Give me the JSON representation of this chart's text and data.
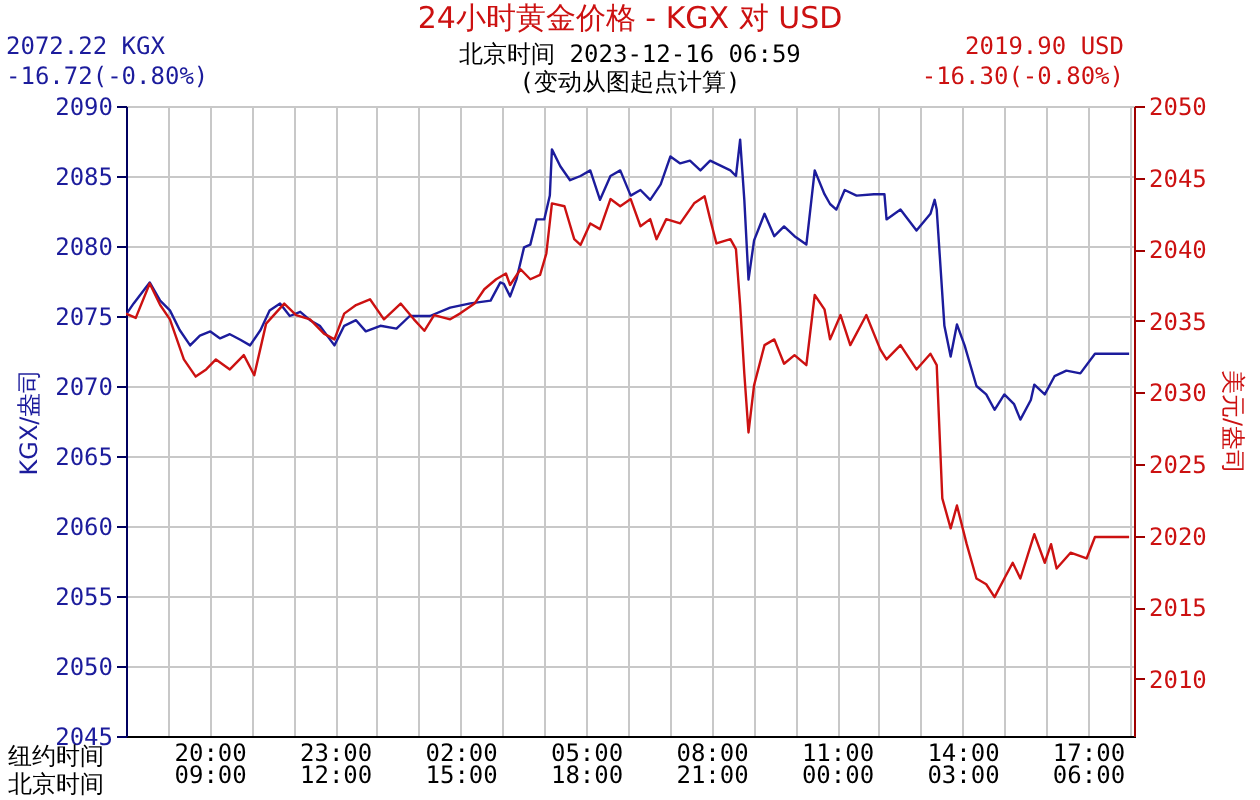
{
  "chart_data": {
    "type": "line",
    "title": "24小时黄金价格 - KGX 对 USD",
    "subtitle": "北京时间 2023-12-16 06:59",
    "ylabel": "KGX/盎司",
    "y2label": "美元/盎司",
    "annotations": [
      "2072.22 KGX",
      "-16.72(-0.80%)",
      "2019.90 USD",
      "-16.30(-0.80%)",
      "(变动从图起点计算)",
      "纽约时间",
      "北京时间"
    ],
    "xlim": [
      "2023-12-14T18:00",
      "2023-12-15T18:06"
    ],
    "xticks": [
      {
        "value": "2023-12-14T19:00",
        "label": null
      },
      {
        "value": "2023-12-14T20:00",
        "label": "20:00"
      },
      {
        "value": "2023-12-14T21:00",
        "label": null
      },
      {
        "value": "2023-12-14T22:00",
        "label": null
      },
      {
        "value": "2023-12-14T23:00",
        "label": "23:00"
      },
      {
        "value": "2023-12-15T00:00",
        "label": null
      },
      {
        "value": "2023-12-15T01:00",
        "label": null
      },
      {
        "value": "2023-12-15T02:00",
        "label": "02:00"
      },
      {
        "value": "2023-12-15T03:00",
        "label": null
      },
      {
        "value": "2023-12-15T04:00",
        "label": null
      },
      {
        "value": "2023-12-15T05:00",
        "label": "05:00"
      },
      {
        "value": "2023-12-15T06:00",
        "label": null
      },
      {
        "value": "2023-12-15T07:00",
        "label": null
      },
      {
        "value": "2023-12-15T08:00",
        "label": "08:00"
      },
      {
        "value": "2023-12-15T09:00",
        "label": null
      },
      {
        "value": "2023-12-15T10:00",
        "label": null
      },
      {
        "value": "2023-12-15T11:00",
        "label": "11:00"
      },
      {
        "value": "2023-12-15T12:00",
        "label": null
      },
      {
        "value": "2023-12-15T13:00",
        "label": null
      },
      {
        "value": "2023-12-15T14:00",
        "label": "14:00"
      },
      {
        "value": "2023-12-15T15:00",
        "label": null
      },
      {
        "value": "2023-12-15T16:00",
        "label": null
      },
      {
        "value": "2023-12-15T17:00",
        "label": "17:00"
      },
      {
        "value": "2023-12-15T18:00",
        "label": null
      }
    ],
    "x2lim": [
      "2023-12-15T07:00",
      "2023-12-16T07:06"
    ],
    "x2ticks": [
      {
        "value": "2023-12-15T09:00",
        "label": "09:00"
      },
      {
        "value": "2023-12-15T12:00",
        "label": "12:00"
      },
      {
        "value": "2023-12-15T15:00",
        "label": "15:00"
      },
      {
        "value": "2023-12-15T18:00",
        "label": "18:00"
      },
      {
        "value": "2023-12-15T21:00",
        "label": "21:00"
      },
      {
        "value": "2023-12-16T00:00",
        "label": "00:00"
      },
      {
        "value": "2023-12-16T03:00",
        "label": "03:00"
      },
      {
        "value": "2023-12-16T06:00",
        "label": "06:00"
      }
    ],
    "ylim": [
      2045,
      2090
    ],
    "yticks": [
      2045,
      2050,
      2055,
      2060,
      2065,
      2070,
      2075,
      2080,
      2085,
      2090
    ],
    "y2lim": [
      2006,
      2050
    ],
    "y2ticks": [
      2010,
      2015,
      2020,
      2025,
      2030,
      2035,
      2040,
      2045,
      2050
    ],
    "grid": true,
    "series": [
      {
        "color": "#1c1c9c",
        "x": [
          "2023-12-14T18:00",
          "2023-12-14T18:11",
          "2023-12-14T18:34",
          "2023-12-14T18:49",
          "2023-12-14T19:03",
          "2023-12-14T19:17",
          "2023-12-14T19:32",
          "2023-12-14T19:46",
          "2023-12-14T20:01",
          "2023-12-14T20:15",
          "2023-12-14T20:29",
          "2023-12-14T20:44",
          "2023-12-14T20:58",
          "2023-12-14T21:13",
          "2023-12-14T21:26",
          "2023-12-14T21:41",
          "2023-12-14T21:55",
          "2023-12-14T22:10",
          "2023-12-14T22:24",
          "2023-12-14T22:38",
          "2023-12-14T22:59",
          "2023-12-14T23:13",
          "2023-12-14T23:30",
          "2023-12-14T23:44",
          "2023-12-15T00:05",
          "2023-12-15T00:28",
          "2023-12-15T00:47",
          "2023-12-15T01:16",
          "2023-12-15T01:45",
          "2023-12-15T02:14",
          "2023-12-15T02:43",
          "2023-12-15T02:57",
          "2023-12-15T03:02",
          "2023-12-15T03:11",
          "2023-12-15T03:20",
          "2023-12-15T03:31",
          "2023-12-15T03:40",
          "2023-12-15T03:49",
          "2023-12-15T04:00",
          "2023-12-15T04:08",
          "2023-12-15T04:11",
          "2023-12-15T04:23",
          "2023-12-15T04:37",
          "2023-12-15T04:52",
          "2023-12-15T05:06",
          "2023-12-15T05:20",
          "2023-12-15T05:35",
          "2023-12-15T05:49",
          "2023-12-15T06:04",
          "2023-12-15T06:18",
          "2023-12-15T06:32",
          "2023-12-15T06:47",
          "2023-12-15T07:01",
          "2023-12-15T07:15",
          "2023-12-15T07:29",
          "2023-12-15T07:44",
          "2023-12-15T07:58",
          "2023-12-15T08:27",
          "2023-12-15T08:35",
          "2023-12-15T08:41",
          "2023-12-15T08:47",
          "2023-12-15T08:53",
          "2023-12-15T09:01",
          "2023-12-15T09:16",
          "2023-12-15T09:30",
          "2023-12-15T09:44",
          "2023-12-15T09:59",
          "2023-12-15T10:16",
          "2023-12-15T10:28",
          "2023-12-15T10:42",
          "2023-12-15T10:50",
          "2023-12-15T10:59",
          "2023-12-15T11:11",
          "2023-12-15T11:28",
          "2023-12-15T11:53",
          "2023-12-15T12:08",
          "2023-12-15T12:11",
          "2023-12-15T12:31",
          "2023-12-15T12:54",
          "2023-12-15T13:14",
          "2023-12-15T13:20",
          "2023-12-15T13:23",
          "2023-12-15T13:34",
          "2023-12-15T13:43",
          "2023-12-15T13:52",
          "2023-12-15T14:03",
          "2023-12-15T14:20",
          "2023-12-15T14:34",
          "2023-12-15T14:46",
          "2023-12-15T15:00",
          "2023-12-15T15:14",
          "2023-12-15T15:23",
          "2023-12-15T15:38",
          "2023-12-15T15:43",
          "2023-12-15T15:58",
          "2023-12-15T16:12",
          "2023-12-15T16:29",
          "2023-12-15T16:49",
          "2023-12-15T17:10",
          "2023-12-15T17:59"
        ],
        "values": [
          2075.1,
          2075.9,
          2077.4,
          2076.1,
          2075.4,
          2074.0,
          2072.9,
          2073.6,
          2073.9,
          2073.4,
          2073.7,
          2073.3,
          2072.9,
          2074.0,
          2075.4,
          2075.9,
          2075.0,
          2075.3,
          2074.7,
          2074.3,
          2072.9,
          2074.3,
          2074.7,
          2073.9,
          2074.3,
          2074.1,
          2075.0,
          2075.0,
          2075.6,
          2075.9,
          2076.1,
          2077.4,
          2077.3,
          2076.4,
          2077.6,
          2079.9,
          2080.1,
          2081.9,
          2081.9,
          2083.6,
          2086.9,
          2085.7,
          2084.7,
          2085.0,
          2085.4,
          2083.3,
          2085.0,
          2085.4,
          2083.6,
          2084.0,
          2083.3,
          2084.4,
          2086.4,
          2085.9,
          2086.1,
          2085.4,
          2086.1,
          2085.4,
          2085.0,
          2087.6,
          2083.3,
          2077.6,
          2080.4,
          2082.3,
          2080.7,
          2081.4,
          2080.7,
          2080.1,
          2085.4,
          2083.7,
          2083.0,
          2082.6,
          2084.0,
          2083.6,
          2083.7,
          2083.7,
          2081.9,
          2082.6,
          2081.1,
          2082.3,
          2083.3,
          2082.6,
          2074.3,
          2072.1,
          2074.4,
          2072.9,
          2070.0,
          2069.4,
          2068.3,
          2069.4,
          2068.7,
          2067.6,
          2069.0,
          2070.1,
          2069.4,
          2070.7,
          2071.1,
          2070.9,
          2072.3,
          2072.3
        ]
      },
      {
        "color": "#cc1111",
        "axis": "y2",
        "x": [
          "2023-12-14T18:00",
          "2023-12-14T18:14",
          "2023-12-14T18:34",
          "2023-12-14T18:49",
          "2023-12-14T19:03",
          "2023-12-14T19:23",
          "2023-12-14T19:40",
          "2023-12-14T19:55",
          "2023-12-14T20:09",
          "2023-12-14T20:29",
          "2023-12-14T20:49",
          "2023-12-14T21:04",
          "2023-12-14T21:21",
          "2023-12-14T21:47",
          "2023-12-14T22:04",
          "2023-12-14T22:24",
          "2023-12-14T22:44",
          "2023-12-14T22:59",
          "2023-12-14T23:13",
          "2023-12-14T23:30",
          "2023-12-14T23:50",
          "2023-12-15T00:10",
          "2023-12-15T00:34",
          "2023-12-15T00:53",
          "2023-12-15T01:08",
          "2023-12-15T01:22",
          "2023-12-15T01:45",
          "2023-12-15T01:59",
          "2023-12-15T02:20",
          "2023-12-15T02:34",
          "2023-12-15T02:51",
          "2023-12-15T03:05",
          "2023-12-15T03:11",
          "2023-12-15T03:26",
          "2023-12-15T03:40",
          "2023-12-15T03:54",
          "2023-12-15T04:03",
          "2023-12-15T04:11",
          "2023-12-15T04:29",
          "2023-12-15T04:43",
          "2023-12-15T04:52",
          "2023-12-15T05:06",
          "2023-12-15T05:20",
          "2023-12-15T05:35",
          "2023-12-15T05:49",
          "2023-12-15T06:04",
          "2023-12-15T06:18",
          "2023-12-15T06:32",
          "2023-12-15T06:41",
          "2023-12-15T06:55",
          "2023-12-15T07:15",
          "2023-12-15T07:35",
          "2023-12-15T07:50",
          "2023-12-15T07:58",
          "2023-12-15T08:07",
          "2023-12-15T08:27",
          "2023-12-15T08:35",
          "2023-12-15T08:41",
          "2023-12-15T08:47",
          "2023-12-15T08:53",
          "2023-12-15T09:01",
          "2023-12-15T09:16",
          "2023-12-15T09:30",
          "2023-12-15T09:44",
          "2023-12-15T09:59",
          "2023-12-15T10:16",
          "2023-12-15T10:28",
          "2023-12-15T10:42",
          "2023-12-15T10:50",
          "2023-12-15T11:05",
          "2023-12-15T11:19",
          "2023-12-15T11:42",
          "2023-12-15T12:02",
          "2023-12-15T12:11",
          "2023-12-15T12:31",
          "2023-12-15T12:54",
          "2023-12-15T13:14",
          "2023-12-15T13:23",
          "2023-12-15T13:31",
          "2023-12-15T13:43",
          "2023-12-15T13:52",
          "2023-12-15T14:06",
          "2023-12-15T14:20",
          "2023-12-15T14:34",
          "2023-12-15T14:46",
          "2023-12-15T15:00",
          "2023-12-15T15:12",
          "2023-12-15T15:23",
          "2023-12-15T15:43",
          "2023-12-15T15:58",
          "2023-12-15T16:07",
          "2023-12-15T16:15",
          "2023-12-15T16:35",
          "2023-12-15T16:58",
          "2023-12-15T17:10",
          "2023-12-15T17:59"
        ],
        "values": [
          2035.5,
          2035.2,
          2037.6,
          2036.1,
          2035.1,
          2032.3,
          2031.1,
          2031.6,
          2032.3,
          2031.6,
          2032.6,
          2031.2,
          2034.8,
          2036.2,
          2035.4,
          2035.1,
          2034.1,
          2033.7,
          2035.5,
          2036.1,
          2036.5,
          2035.1,
          2036.2,
          2035.1,
          2034.3,
          2035.4,
          2035.1,
          2035.5,
          2036.2,
          2037.2,
          2037.9,
          2038.3,
          2037.5,
          2038.6,
          2037.9,
          2038.2,
          2039.7,
          2043.2,
          2043.0,
          2040.7,
          2040.3,
          2041.8,
          2041.4,
          2043.5,
          2043.0,
          2043.5,
          2041.6,
          2042.1,
          2040.7,
          2042.1,
          2041.8,
          2043.2,
          2043.7,
          2042.1,
          2040.4,
          2040.7,
          2040.0,
          2036.1,
          2031.3,
          2027.2,
          2030.5,
          2033.3,
          2033.7,
          2032.0,
          2032.6,
          2031.9,
          2036.8,
          2035.8,
          2033.7,
          2035.4,
          2033.3,
          2035.4,
          2033.0,
          2032.3,
          2033.3,
          2031.6,
          2032.7,
          2031.9,
          2022.6,
          2020.5,
          2022.1,
          2019.4,
          2017.0,
          2016.6,
          2015.7,
          2017.0,
          2018.1,
          2017.0,
          2020.1,
          2018.1,
          2019.4,
          2017.7,
          2018.8,
          2018.4,
          2019.9,
          2019.9
        ]
      }
    ]
  }
}
